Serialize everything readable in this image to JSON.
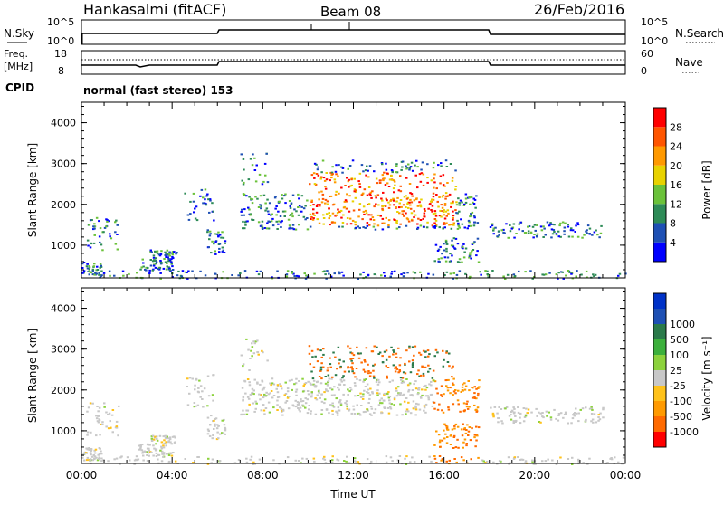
{
  "header": {
    "station": "Hankasalmi (fitACF)",
    "beam": "Beam 08",
    "date": "26/Feb/2016"
  },
  "strip_labels": {
    "nsky": "N.Sky",
    "nsearch": "N.Search",
    "freq_line1": "Freq.",
    "freq_line2": "[MHz]",
    "nave": "Nave",
    "cpid": "CPID",
    "cpid_value": "normal (fast stereo) 153"
  },
  "strip_ticks": {
    "noise_left_top": "10^5",
    "noise_left_bottom": "10^0",
    "noise_right_top": "10^5",
    "noise_right_bottom": "10^0",
    "freq_left_top": "18",
    "freq_left_bottom": "8",
    "nave_right_top": "60",
    "nave_right_bottom": "0"
  },
  "colors": {
    "power": [
      "#0000ff",
      "#1e50b4",
      "#2e8b57",
      "#6bc23a",
      "#e8d200",
      "#ff9900",
      "#ff5500",
      "#ff0000"
    ],
    "velocity": [
      "#ff0000",
      "#ff6a00",
      "#ff9a00",
      "#ffc21a",
      "#c8c8c8",
      "#8cd23c",
      "#3cb03c",
      "#2a7a4a",
      "#1e50b4",
      "#0032c8"
    ]
  },
  "chart_data": [
    {
      "type": "heatmap",
      "name": "power",
      "ylabel": "Slant Range [km]",
      "ylim": [
        200,
        4500
      ],
      "yticks": [
        "1000",
        "2000",
        "3000",
        "4000"
      ],
      "xticks": [
        "00:00",
        "04:00",
        "08:00",
        "12:00",
        "16:00",
        "20:00",
        "00:00"
      ],
      "colorbar_label": "Power [dB]",
      "colorbar_ticks": [
        "4",
        "8",
        "12",
        "16",
        "20",
        "24",
        "28"
      ],
      "colorbar_range": [
        0,
        32
      ]
    },
    {
      "type": "heatmap",
      "name": "velocity",
      "ylabel": "Slant Range [km]",
      "ylim": [
        200,
        4500
      ],
      "yticks": [
        "1000",
        "2000",
        "3000",
        "4000"
      ],
      "xticks": [
        "00:00",
        "04:00",
        "08:00",
        "12:00",
        "16:00",
        "20:00",
        "00:00"
      ],
      "xlabel": "Time UT",
      "colorbar_label": "Velocity [m s⁻¹]",
      "colorbar_ticks": [
        "-1000",
        "-500",
        "-100",
        "-25",
        "25",
        "100",
        "500",
        "1000"
      ]
    }
  ]
}
